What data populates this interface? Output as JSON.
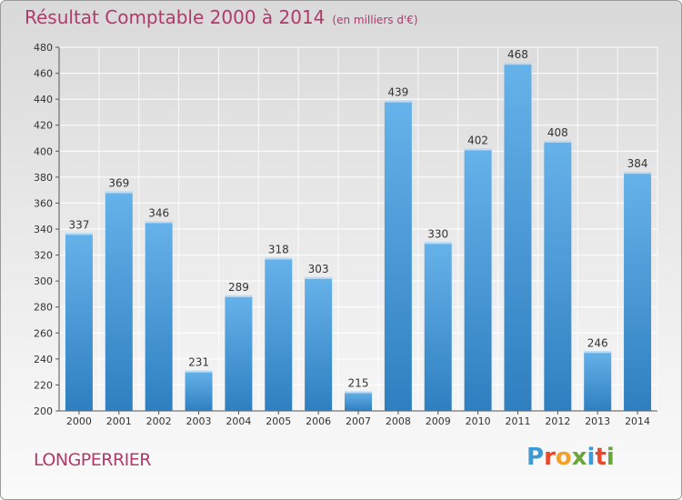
{
  "header": {
    "title": "Résultat Comptable 2000 à 2014",
    "unit": "(en milliers d'€)"
  },
  "footer": {
    "place": "LONGPERRIER",
    "logo": "Proxiti",
    "logo_colors": [
      "#3a9bd5",
      "#e8492d",
      "#f2a22a",
      "#6aa63c",
      "#3a9bd5",
      "#e8492d",
      "#6aa63c"
    ]
  },
  "colors": {
    "title": "#b03a6a",
    "bar_top": "#66b2ea",
    "bar_bottom": "#2f7fc0"
  },
  "chart_data": {
    "type": "bar",
    "categories": [
      "2000",
      "2001",
      "2002",
      "2003",
      "2004",
      "2005",
      "2006",
      "2007",
      "2008",
      "2009",
      "2010",
      "2011",
      "2012",
      "2013",
      "2014"
    ],
    "values": [
      337,
      369,
      346,
      231,
      289,
      318,
      303,
      215,
      439,
      330,
      402,
      468,
      408,
      246,
      384
    ],
    "ylim": [
      200,
      480
    ],
    "yticks": [
      200,
      220,
      240,
      260,
      280,
      300,
      320,
      340,
      360,
      380,
      400,
      420,
      440,
      460,
      480
    ],
    "grid": true,
    "legend": "none"
  }
}
